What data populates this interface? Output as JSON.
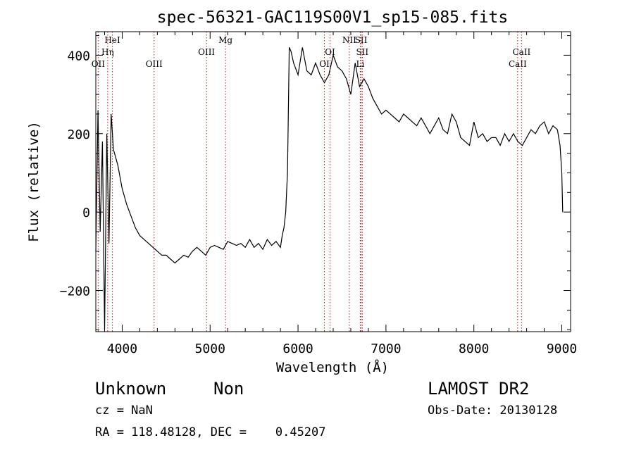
{
  "chart_data": {
    "type": "line",
    "title": "spec-56321-GAC119S00V1_sp15-085.fits",
    "xlabel": "Wavelength (Å)",
    "ylabel": "Flux (relative)",
    "xlim": [
      3700,
      9100
    ],
    "ylim": [
      -305,
      460
    ],
    "x_ticks": [
      4000,
      5000,
      6000,
      7000,
      8000,
      9000
    ],
    "y_ticks": [
      -200,
      0,
      200,
      400
    ],
    "grid": false,
    "line_color": "#000000",
    "marker_color": "#b22222",
    "lines": [
      {
        "name": "OII",
        "wave": 3727,
        "row": 3
      },
      {
        "name": "Hη",
        "wave": 3835,
        "row": 2
      },
      {
        "name": "HeI",
        "wave": 3889,
        "row": 1
      },
      {
        "name": "OIII",
        "wave": 4363,
        "row": 3
      },
      {
        "name": "OIII",
        "wave": 4959,
        "row": 2
      },
      {
        "name": "Mg",
        "wave": 5175,
        "row": 1
      },
      {
        "name": "OI",
        "wave": 6300,
        "row": 3
      },
      {
        "name": "OI",
        "wave": 6364,
        "row": 2
      },
      {
        "name": "NII",
        "wave": 6583,
        "row": 1
      },
      {
        "name": "SII",
        "wave": 6717,
        "row": 1
      },
      {
        "name": "SII",
        "wave": 6731,
        "row": 2
      },
      {
        "name": "Li",
        "wave": 6708,
        "row": 3
      },
      {
        "name": "CaII",
        "wave": 8498,
        "row": 3
      },
      {
        "name": "CaII",
        "wave": 8542,
        "row": 2
      }
    ],
    "series": [
      {
        "x": [
          3700,
          3725,
          3750,
          3775,
          3800,
          3825,
          3850,
          3875,
          3900,
          3950,
          4000,
          4050,
          4100,
          4150,
          4200,
          4250,
          4300,
          4350,
          4400,
          4450,
          4500,
          4550,
          4600,
          4650,
          4700,
          4750,
          4800,
          4850,
          4900,
          4950,
          5000,
          5050,
          5100,
          5150,
          5200,
          5250,
          5300,
          5350,
          5400,
          5450,
          5500,
          5550,
          5600,
          5650,
          5700,
          5750,
          5800,
          5820,
          5840,
          5860,
          5870,
          5880,
          5890,
          5900,
          5920,
          5950,
          6000,
          6050,
          6100,
          6150,
          6200,
          6250,
          6300,
          6350,
          6400,
          6450,
          6500,
          6550,
          6600,
          6650,
          6700,
          6750,
          6800,
          6850,
          6900,
          6950,
          7000,
          7050,
          7100,
          7150,
          7200,
          7250,
          7300,
          7350,
          7400,
          7450,
          7500,
          7550,
          7600,
          7650,
          7700,
          7750,
          7800,
          7850,
          7900,
          7950,
          8000,
          8050,
          8100,
          8150,
          8200,
          8250,
          8300,
          8350,
          8400,
          8450,
          8500,
          8550,
          8600,
          8650,
          8700,
          8750,
          8800,
          8850,
          8900,
          8950,
          8980,
          9000,
          9010
        ],
        "y": [
          -100,
          260,
          -50,
          180,
          -300,
          200,
          -80,
          250,
          160,
          120,
          60,
          20,
          -10,
          -40,
          -60,
          -70,
          -80,
          -90,
          -100,
          -110,
          -110,
          -120,
          -130,
          -120,
          -110,
          -115,
          -100,
          -90,
          -100,
          -110,
          -90,
          -85,
          -90,
          -95,
          -75,
          -80,
          -85,
          -80,
          -90,
          -70,
          -90,
          -80,
          -95,
          -70,
          -85,
          -75,
          -90,
          -60,
          -40,
          0,
          50,
          100,
          250,
          420,
          410,
          380,
          350,
          420,
          360,
          350,
          380,
          350,
          330,
          350,
          400,
          370,
          360,
          340,
          300,
          380,
          320,
          340,
          320,
          290,
          270,
          250,
          260,
          250,
          240,
          230,
          250,
          240,
          230,
          220,
          240,
          220,
          200,
          220,
          240,
          210,
          200,
          250,
          230,
          190,
          180,
          170,
          230,
          190,
          200,
          180,
          190,
          190,
          170,
          200,
          180,
          200,
          180,
          170,
          190,
          210,
          200,
          220,
          230,
          200,
          220,
          210,
          170,
          100,
          0
        ]
      }
    ]
  },
  "info": {
    "object_type": "Unknown",
    "subclass": "Non",
    "survey": "LAMOST DR2",
    "cz": "cz = NaN",
    "obs_date": "Obs-Date: 20130128",
    "coords": "RA = 118.48128, DEC =    0.45207"
  }
}
